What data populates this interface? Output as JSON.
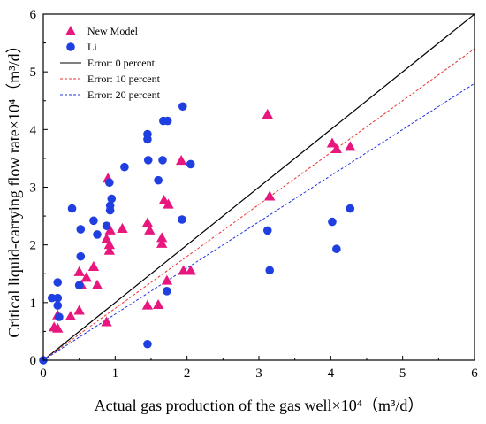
{
  "chart_data": {
    "type": "scatter",
    "xlabel": "Actual gas production of the gas well×10⁴（m³/d）",
    "ylabel": "Critical liquid-carrying flow rate×10⁴（m³/d）",
    "xlim": [
      0,
      6
    ],
    "ylim": [
      0,
      6
    ],
    "xticks": [
      "0",
      "1",
      "2",
      "3",
      "4",
      "5",
      "6"
    ],
    "yticks": [
      "0",
      "1",
      "2",
      "3",
      "4",
      "5",
      "6"
    ],
    "grid": false,
    "legend_position": "top-left",
    "series": [
      {
        "name": "New Model",
        "marker": "triangle",
        "color": "#e8177d",
        "points": [
          [
            0.15,
            0.57
          ],
          [
            0.2,
            0.55
          ],
          [
            0.2,
            0.78
          ],
          [
            0.38,
            0.76
          ],
          [
            0.5,
            0.86
          ],
          [
            0.5,
            1.53
          ],
          [
            0.53,
            1.3
          ],
          [
            0.7,
            1.62
          ],
          [
            0.6,
            1.43
          ],
          [
            0.75,
            1.3
          ],
          [
            0.88,
            0.66
          ],
          [
            0.88,
            2.1
          ],
          [
            0.92,
            1.9
          ],
          [
            0.92,
            2.0
          ],
          [
            0.9,
            3.15
          ],
          [
            0.93,
            2.25
          ],
          [
            1.1,
            2.28
          ],
          [
            1.45,
            0.95
          ],
          [
            1.6,
            0.96
          ],
          [
            1.45,
            2.38
          ],
          [
            1.48,
            2.25
          ],
          [
            1.65,
            2.02
          ],
          [
            1.65,
            2.12
          ],
          [
            1.72,
            1.38
          ],
          [
            1.68,
            2.77
          ],
          [
            1.74,
            2.7
          ],
          [
            1.92,
            3.46
          ],
          [
            1.95,
            1.55
          ],
          [
            2.05,
            1.55
          ],
          [
            3.12,
            4.26
          ],
          [
            3.15,
            2.84
          ],
          [
            4.02,
            3.76
          ],
          [
            4.08,
            3.66
          ],
          [
            4.27,
            3.7
          ]
        ]
      },
      {
        "name": "Li",
        "marker": "circle",
        "color": "#1f3fe0",
        "points": [
          [
            0.0,
            0.0
          ],
          [
            0.12,
            1.08
          ],
          [
            0.2,
            1.08
          ],
          [
            0.2,
            1.35
          ],
          [
            0.2,
            0.95
          ],
          [
            0.22,
            0.75
          ],
          [
            0.4,
            2.63
          ],
          [
            0.5,
            1.3
          ],
          [
            0.52,
            1.8
          ],
          [
            0.52,
            2.27
          ],
          [
            0.7,
            2.42
          ],
          [
            0.75,
            2.18
          ],
          [
            0.88,
            2.33
          ],
          [
            0.92,
            3.08
          ],
          [
            0.93,
            2.6
          ],
          [
            0.93,
            2.68
          ],
          [
            0.95,
            2.8
          ],
          [
            1.13,
            3.35
          ],
          [
            1.45,
            0.28
          ],
          [
            1.45,
            3.83
          ],
          [
            1.45,
            3.92
          ],
          [
            1.46,
            3.47
          ],
          [
            1.6,
            3.12
          ],
          [
            1.66,
            3.47
          ],
          [
            1.67,
            4.15
          ],
          [
            1.73,
            4.15
          ],
          [
            1.72,
            1.2
          ],
          [
            1.93,
            2.44
          ],
          [
            1.94,
            4.4
          ],
          [
            2.05,
            3.4
          ],
          [
            3.12,
            2.25
          ],
          [
            3.15,
            1.56
          ],
          [
            4.02,
            2.4
          ],
          [
            4.08,
            1.93
          ],
          [
            4.27,
            2.63
          ]
        ]
      },
      {
        "name": "Error: 0 percent",
        "style": "solid",
        "color": "#000000",
        "x": [
          0,
          6
        ],
        "y": [
          0,
          6
        ]
      },
      {
        "name": "Error: 10 percent",
        "style": "dashed",
        "color": "#e8332e",
        "x": [
          0,
          6
        ],
        "y": [
          0,
          5.4
        ]
      },
      {
        "name": "Error: 20 percent",
        "style": "dashed",
        "color": "#2233dd",
        "x": [
          0,
          6
        ],
        "y": [
          0,
          4.8
        ]
      }
    ]
  }
}
